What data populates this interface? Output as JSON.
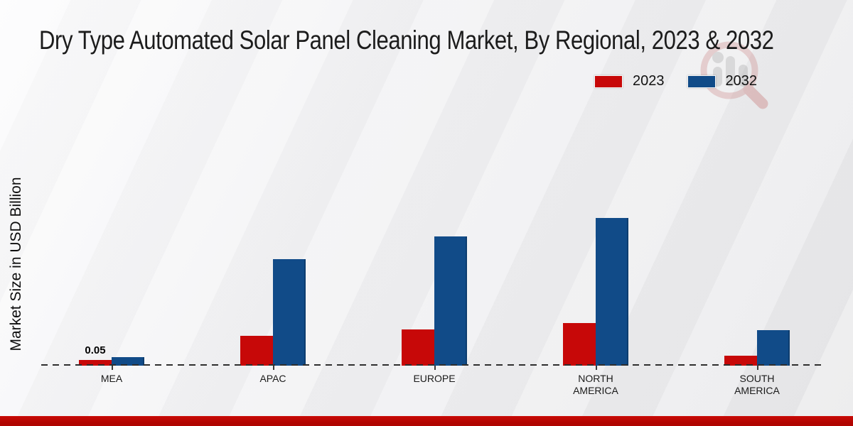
{
  "chart_data": {
    "type": "bar",
    "title": "Dry Type Automated Solar Panel Cleaning Market, By Regional, 2023 & 2032",
    "ylabel": "Market Size in USD Billion",
    "xlabel": "",
    "categories": [
      "MEA",
      "APAC",
      "EUROPE",
      "NORTH AMERICA",
      "SOUTH AMERICA"
    ],
    "series": [
      {
        "name": "2023",
        "color": "#c70808",
        "values": [
          0.05,
          0.28,
          0.34,
          0.4,
          0.09
        ]
      },
      {
        "name": "2032",
        "color": "#114b88",
        "values": [
          0.08,
          1.0,
          1.21,
          1.39,
          0.33
        ]
      }
    ],
    "annotations": [
      {
        "category": "MEA",
        "series": "2023",
        "text": "0.05"
      }
    ],
    "ylim": [
      0,
      1.5
    ],
    "grid": false,
    "legend_position": "top-right",
    "baseline_style": "dashed"
  },
  "watermark": {
    "icon": "magnifier-bar-chart-logo"
  },
  "footer": {
    "band_color": "#b00400"
  }
}
